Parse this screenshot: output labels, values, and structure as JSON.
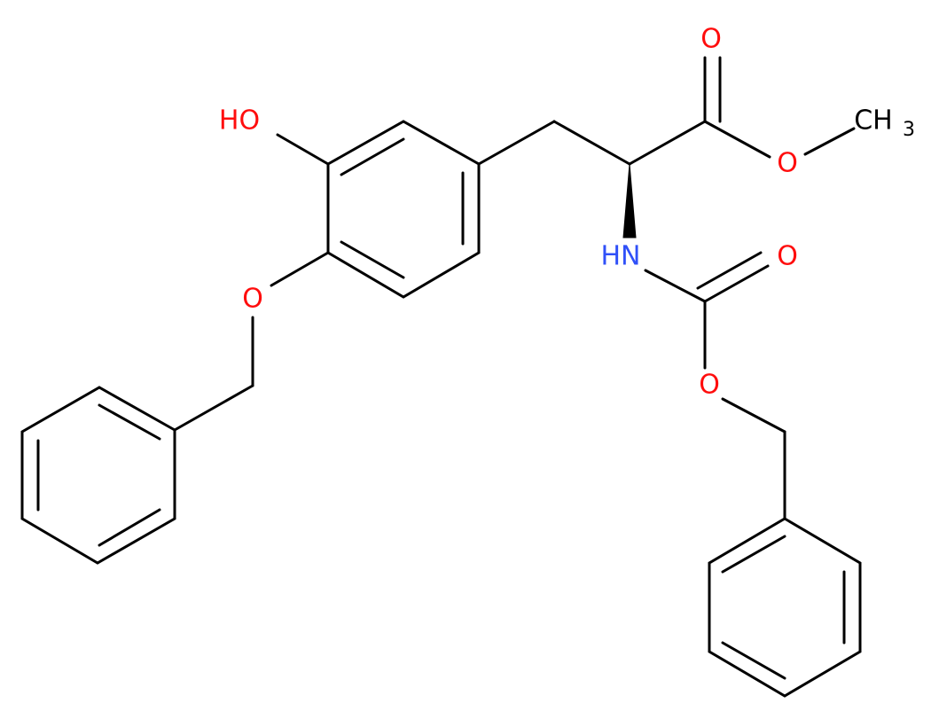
{
  "atoms": [
    {
      "label": "HO"
    },
    {
      "label": "O"
    },
    {
      "label": "O"
    },
    {
      "label": "O"
    },
    {
      "label": "CH",
      "subscript": "3"
    },
    {
      "label": "HN"
    },
    {
      "label": "O"
    },
    {
      "label": "O"
    }
  ]
}
